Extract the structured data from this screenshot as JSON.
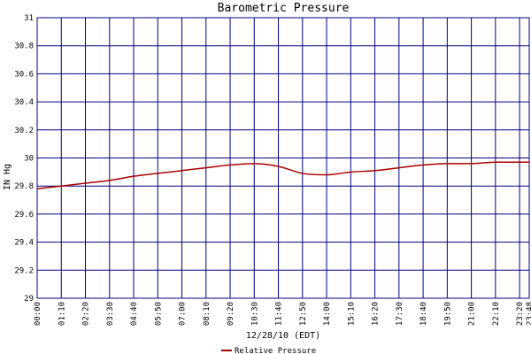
{
  "chart_data": {
    "type": "line",
    "title": "Barometric Pressure",
    "xlabel": "12/28/10 (EDT)",
    "ylabel": "IN Hg",
    "ylim": [
      29,
      31
    ],
    "yticks": [
      "29",
      "29.2",
      "29.4",
      "29.6",
      "29.8",
      "30",
      "30.2",
      "30.4",
      "30.6",
      "30.8",
      "31"
    ],
    "xticks": [
      "00:00",
      "01:10",
      "02:20",
      "03:30",
      "04:40",
      "05:50",
      "07:00",
      "08:10",
      "09:20",
      "10:30",
      "11:40",
      "12:50",
      "14:00",
      "15:10",
      "16:20",
      "17:30",
      "18:40",
      "19:50",
      "21:00",
      "22:10",
      "23:20",
      "23:48"
    ],
    "grid": true,
    "legend_position": "bottom",
    "colors": {
      "grid": "#000080",
      "line": "#aa0000"
    },
    "series": [
      {
        "name": "Relative Pressure",
        "x": [
          "00:00",
          "01:10",
          "02:20",
          "03:30",
          "04:40",
          "05:50",
          "07:00",
          "08:10",
          "09:20",
          "10:30",
          "11:40",
          "12:50",
          "14:00",
          "15:10",
          "16:20",
          "17:30",
          "18:40",
          "19:50",
          "21:00",
          "22:10",
          "23:20",
          "23:48"
        ],
        "values": [
          29.78,
          29.8,
          29.82,
          29.84,
          29.87,
          29.89,
          29.91,
          29.93,
          29.95,
          29.96,
          29.94,
          29.89,
          29.88,
          29.9,
          29.91,
          29.93,
          29.95,
          29.96,
          29.96,
          29.97,
          29.97,
          29.97
        ]
      }
    ]
  }
}
